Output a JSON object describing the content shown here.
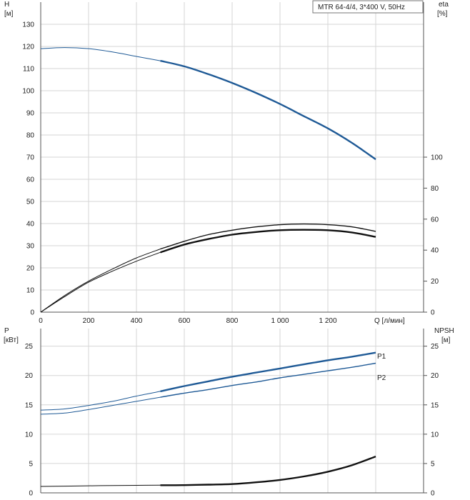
{
  "chart_data": [
    {
      "type": "line",
      "panel": "head-efficiency",
      "title": "MTR 64-4/4, 3*400 V, 50Hz",
      "xlabel": "Q [л/мин]",
      "ylabel_left": [
        "H",
        "[м]"
      ],
      "ylabel_right": [
        "eta",
        "[%]"
      ],
      "xlim": [
        0,
        1600
      ],
      "ylim_left": [
        0,
        140
      ],
      "ylim_right": [
        0,
        200
      ],
      "x_ticks": [
        0,
        200,
        400,
        600,
        800,
        1000,
        1200
      ],
      "x_tick_labels": [
        "0",
        "200",
        "400",
        "600",
        "800",
        "1 000",
        "1 200"
      ],
      "y_ticks_left": [
        0,
        10,
        20,
        30,
        40,
        50,
        60,
        70,
        80,
        90,
        100,
        110,
        120,
        130
      ],
      "y_ticks_right": [
        0,
        20,
        40,
        60,
        80,
        100
      ],
      "grid": true,
      "colors": {
        "head": "#1f5a96",
        "efficiency": "#111111"
      },
      "series": [
        {
          "key": "head",
          "axis": "left",
          "thin_x": [
            0,
            100,
            200,
            300,
            400,
            500
          ],
          "thin_y": [
            119,
            119.5,
            119,
            117.5,
            115.5,
            113.5
          ],
          "thick_x": [
            500,
            600,
            700,
            800,
            900,
            1000,
            1100,
            1200,
            1300,
            1400
          ],
          "thick_y": [
            113.5,
            111,
            107.5,
            103.5,
            99,
            94,
            88.5,
            83,
            76.5,
            69
          ]
        },
        {
          "key": "efficiency-upper",
          "axis": "left",
          "thin_x": [
            0,
            100,
            200,
            300,
            400,
            500
          ],
          "thin_y": [
            0,
            7.5,
            14,
            19.5,
            24.5,
            28.5
          ],
          "thick_x": [
            500,
            600,
            700,
            800,
            900,
            1000,
            1100,
            1200,
            1300,
            1400
          ],
          "thick_y": [
            28.5,
            32,
            35,
            37,
            38.5,
            39.5,
            39.8,
            39.5,
            38.5,
            36.5
          ]
        },
        {
          "key": "efficiency",
          "axis": "left",
          "thin_x": [
            0,
            100,
            200,
            300,
            400,
            500
          ],
          "thin_y": [
            0,
            7,
            13.5,
            18.5,
            23,
            27
          ],
          "thick_x": [
            500,
            600,
            700,
            800,
            900,
            1000,
            1100,
            1200,
            1300,
            1400
          ],
          "thick_y": [
            27,
            30.5,
            33,
            35,
            36.2,
            37,
            37.2,
            37,
            36,
            34
          ]
        }
      ]
    },
    {
      "type": "line",
      "panel": "power-npsh",
      "ylabel_left": [
        "P",
        "[кВт]"
      ],
      "ylabel_right": [
        "NPSH",
        "[м]"
      ],
      "xlim": [
        0,
        1600
      ],
      "ylim_left": [
        0,
        28
      ],
      "ylim_right": [
        0,
        28
      ],
      "y_ticks_left": [
        0,
        5,
        10,
        15,
        20,
        25
      ],
      "y_ticks_right": [
        0,
        5,
        10,
        15,
        20,
        25
      ],
      "grid": true,
      "colors": {
        "power": "#1f5a96",
        "npsh": "#111111"
      },
      "series": [
        {
          "name": "P1",
          "key": "p1",
          "axis": "left",
          "thin_x": [
            0,
            100,
            200,
            300,
            400,
            500
          ],
          "thin_y": [
            14.1,
            14.3,
            14.9,
            15.6,
            16.5,
            17.3
          ],
          "thick_x": [
            500,
            600,
            700,
            800,
            900,
            1000,
            1100,
            1200,
            1300,
            1400
          ],
          "thick_y": [
            17.3,
            18.2,
            19.0,
            19.8,
            20.5,
            21.2,
            21.9,
            22.6,
            23.2,
            23.9
          ]
        },
        {
          "name": "P2",
          "key": "p2",
          "axis": "left",
          "thin_x": [
            0,
            100,
            200,
            300,
            400,
            500
          ],
          "thin_y": [
            13.4,
            13.6,
            14.2,
            14.9,
            15.6,
            16.3
          ],
          "thick_x": [
            500,
            600,
            700,
            800,
            900,
            1000,
            1100,
            1200,
            1300,
            1400
          ],
          "thick_y": [
            16.3,
            17.0,
            17.6,
            18.3,
            18.9,
            19.6,
            20.2,
            20.8,
            21.4,
            22.1
          ]
        },
        {
          "key": "npsh",
          "axis": "right",
          "thin_x": [
            0,
            100,
            200,
            300,
            400,
            500
          ],
          "thin_y": [
            1.1,
            1.15,
            1.2,
            1.25,
            1.28,
            1.3
          ],
          "thick_x": [
            500,
            600,
            700,
            800,
            900,
            1000,
            1100,
            1200,
            1300,
            1400
          ],
          "thick_y": [
            1.3,
            1.32,
            1.4,
            1.5,
            1.8,
            2.2,
            2.8,
            3.6,
            4.7,
            6.2
          ]
        }
      ]
    }
  ]
}
